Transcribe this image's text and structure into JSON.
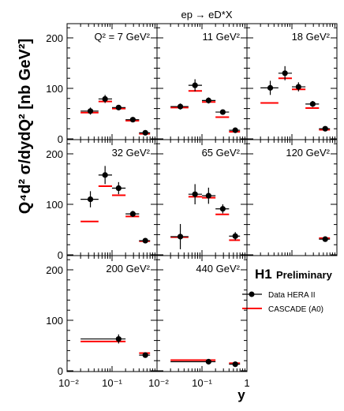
{
  "figure": {
    "process_title": "ep → eD*X",
    "ylabel": "Q⁴d² σ/dydQ² [nb GeV²]",
    "xlabel": "y",
    "experiment": "H1",
    "status": "Preliminary",
    "colors": {
      "data": "#000000",
      "cascade": "#ff0000"
    }
  },
  "legend": {
    "entries": [
      {
        "label": "Data HERA II",
        "style": "marker-errorbar",
        "color": "#000000"
      },
      {
        "label": "CASCADE (A0)",
        "style": "line",
        "color": "#ff0000"
      }
    ]
  },
  "axes_labels": {
    "y_ticks": [
      "0",
      "100",
      "200"
    ],
    "x_ticks": [
      "10⁻²",
      "10⁻¹",
      "1"
    ]
  },
  "chart_data": [
    {
      "type": "scatter",
      "title": "Q² = 7 GeV²",
      "xscale": "log",
      "xlim": [
        0.01,
        1
      ],
      "ylim": [
        0,
        225
      ],
      "series": [
        {
          "name": "Data HERA II",
          "points": [
            {
              "x": 0.033,
              "y": 55,
              "xlo": 0.02,
              "xhi": 0.05,
              "err": 7
            },
            {
              "x": 0.07,
              "y": 79,
              "xlo": 0.05,
              "xhi": 0.1,
              "err": 8
            },
            {
              "x": 0.14,
              "y": 62,
              "xlo": 0.1,
              "xhi": 0.2,
              "err": 5
            },
            {
              "x": 0.29,
              "y": 38,
              "xlo": 0.2,
              "xhi": 0.4,
              "err": 4
            },
            {
              "x": 0.55,
              "y": 12,
              "xlo": 0.4,
              "xhi": 0.7,
              "err": 3
            }
          ]
        },
        {
          "name": "CASCADE (A0)",
          "steps": [
            {
              "xlo": 0.02,
              "xhi": 0.05,
              "y": 52
            },
            {
              "xlo": 0.05,
              "xhi": 0.1,
              "y": 74
            },
            {
              "xlo": 0.1,
              "xhi": 0.2,
              "y": 60
            },
            {
              "xlo": 0.2,
              "xhi": 0.4,
              "y": 36
            },
            {
              "xlo": 0.4,
              "xhi": 0.7,
              "y": 10
            }
          ]
        }
      ]
    },
    {
      "type": "scatter",
      "title": "11 GeV²",
      "xscale": "log",
      "xlim": [
        0.01,
        1
      ],
      "ylim": [
        0,
        225
      ],
      "series": [
        {
          "name": "Data HERA II",
          "points": [
            {
              "x": 0.033,
              "y": 64,
              "xlo": 0.02,
              "xhi": 0.05,
              "err": 6
            },
            {
              "x": 0.07,
              "y": 106,
              "xlo": 0.05,
              "xhi": 0.1,
              "err": 12
            },
            {
              "x": 0.14,
              "y": 76,
              "xlo": 0.1,
              "xhi": 0.2,
              "err": 6
            },
            {
              "x": 0.29,
              "y": 53,
              "xlo": 0.2,
              "xhi": 0.4,
              "err": 4
            },
            {
              "x": 0.55,
              "y": 17,
              "xlo": 0.4,
              "xhi": 0.7,
              "err": 3
            }
          ]
        },
        {
          "name": "CASCADE (A0)",
          "steps": [
            {
              "xlo": 0.02,
              "xhi": 0.05,
              "y": 62
            },
            {
              "xlo": 0.05,
              "xhi": 0.1,
              "y": 95
            },
            {
              "xlo": 0.1,
              "xhi": 0.2,
              "y": 73
            },
            {
              "xlo": 0.2,
              "xhi": 0.4,
              "y": 43
            },
            {
              "xlo": 0.4,
              "xhi": 0.7,
              "y": 14
            }
          ]
        }
      ]
    },
    {
      "type": "scatter",
      "title": "18 GeV²",
      "xscale": "log",
      "xlim": [
        0.01,
        1
      ],
      "ylim": [
        0,
        225
      ],
      "series": [
        {
          "name": "Data HERA II",
          "points": [
            {
              "x": 0.033,
              "y": 101,
              "xlo": 0.02,
              "xhi": 0.05,
              "err": 14
            },
            {
              "x": 0.07,
              "y": 130,
              "xlo": 0.05,
              "xhi": 0.1,
              "err": 14
            },
            {
              "x": 0.14,
              "y": 103,
              "xlo": 0.1,
              "xhi": 0.2,
              "err": 9
            },
            {
              "x": 0.29,
              "y": 69,
              "xlo": 0.2,
              "xhi": 0.4,
              "err": 6
            },
            {
              "x": 0.55,
              "y": 20,
              "xlo": 0.4,
              "xhi": 0.7,
              "err": 3
            }
          ]
        },
        {
          "name": "CASCADE (A0)",
          "steps": [
            {
              "xlo": 0.02,
              "xhi": 0.05,
              "y": 71
            },
            {
              "xlo": 0.05,
              "xhi": 0.1,
              "y": 120
            },
            {
              "xlo": 0.1,
              "xhi": 0.2,
              "y": 98
            },
            {
              "xlo": 0.2,
              "xhi": 0.4,
              "y": 61
            },
            {
              "xlo": 0.4,
              "xhi": 0.7,
              "y": 18
            }
          ]
        }
      ]
    },
    {
      "type": "scatter",
      "title": "32 GeV²",
      "xscale": "log",
      "xlim": [
        0.01,
        1
      ],
      "ylim": [
        0,
        225
      ],
      "series": [
        {
          "name": "Data HERA II",
          "points": [
            {
              "x": 0.033,
              "y": 110,
              "xlo": 0.02,
              "xhi": 0.05,
              "err": 16
            },
            {
              "x": 0.07,
              "y": 158,
              "xlo": 0.05,
              "xhi": 0.1,
              "err": 18
            },
            {
              "x": 0.14,
              "y": 132,
              "xlo": 0.1,
              "xhi": 0.2,
              "err": 12
            },
            {
              "x": 0.29,
              "y": 81,
              "xlo": 0.2,
              "xhi": 0.4,
              "err": 6
            },
            {
              "x": 0.55,
              "y": 28,
              "xlo": 0.4,
              "xhi": 0.7,
              "err": 3
            }
          ]
        },
        {
          "name": "CASCADE (A0)",
          "steps": [
            {
              "xlo": 0.02,
              "xhi": 0.05,
              "y": 66
            },
            {
              "xlo": 0.05,
              "xhi": 0.1,
              "y": 136
            },
            {
              "xlo": 0.1,
              "xhi": 0.2,
              "y": 118
            },
            {
              "xlo": 0.2,
              "xhi": 0.4,
              "y": 76
            },
            {
              "xlo": 0.4,
              "xhi": 0.7,
              "y": 27
            }
          ]
        }
      ]
    },
    {
      "type": "scatter",
      "title": "65 GeV²",
      "xscale": "log",
      "xlim": [
        0.01,
        1
      ],
      "ylim": [
        0,
        225
      ],
      "series": [
        {
          "name": "Data HERA II",
          "points": [
            {
              "x": 0.033,
              "y": 36,
              "xlo": 0.02,
              "xhi": 0.05,
              "err": 25
            },
            {
              "x": 0.07,
              "y": 120,
              "xlo": 0.05,
              "xhi": 0.1,
              "err": 20
            },
            {
              "x": 0.14,
              "y": 117,
              "xlo": 0.1,
              "xhi": 0.2,
              "err": 16
            },
            {
              "x": 0.29,
              "y": 91,
              "xlo": 0.2,
              "xhi": 0.4,
              "err": 9
            },
            {
              "x": 0.55,
              "y": 37,
              "xlo": 0.4,
              "xhi": 0.7,
              "err": 8
            }
          ]
        },
        {
          "name": "CASCADE (A0)",
          "steps": [
            {
              "xlo": 0.02,
              "xhi": 0.05,
              "y": 35
            },
            {
              "xlo": 0.05,
              "xhi": 0.1,
              "y": 115
            },
            {
              "xlo": 0.1,
              "xhi": 0.2,
              "y": 113
            },
            {
              "xlo": 0.2,
              "xhi": 0.4,
              "y": 80
            },
            {
              "xlo": 0.4,
              "xhi": 0.7,
              "y": 29
            }
          ]
        }
      ]
    },
    {
      "type": "scatter",
      "title": "120 GeV²",
      "xscale": "log",
      "xlim": [
        0.01,
        1
      ],
      "ylim": [
        0,
        225
      ],
      "series": [
        {
          "name": "Data HERA II",
          "points": [
            {
              "x": 0.55,
              "y": 31,
              "xlo": 0.4,
              "xhi": 0.7,
              "err": 4
            }
          ]
        },
        {
          "name": "CASCADE (A0)",
          "steps": [
            {
              "xlo": 0.4,
              "xhi": 0.7,
              "y": 33
            }
          ]
        }
      ]
    },
    {
      "type": "scatter",
      "title": "200 GeV²",
      "xscale": "log",
      "xlim": [
        0.01,
        1
      ],
      "ylim": [
        0,
        225
      ],
      "series": [
        {
          "name": "Data HERA II",
          "points": [
            {
              "x": 0.14,
              "y": 63,
              "xlo": 0.02,
              "xhi": 0.2,
              "err": 9
            },
            {
              "x": 0.55,
              "y": 31,
              "xlo": 0.4,
              "xhi": 0.7,
              "err": 4
            }
          ]
        },
        {
          "name": "CASCADE (A0)",
          "steps": [
            {
              "xlo": 0.02,
              "xhi": 0.2,
              "y": 58
            },
            {
              "xlo": 0.4,
              "xhi": 0.7,
              "y": 35
            }
          ]
        }
      ]
    },
    {
      "type": "scatter",
      "title": "440 GeV²",
      "xscale": "log",
      "xlim": [
        0.01,
        1
      ],
      "ylim": [
        0,
        225
      ],
      "series": [
        {
          "name": "Data HERA II",
          "points": [
            {
              "x": 0.14,
              "y": 18,
              "xlo": 0.02,
              "xhi": 0.2,
              "err": 3
            },
            {
              "x": 0.55,
              "y": 13,
              "xlo": 0.4,
              "xhi": 0.7,
              "err": 3
            }
          ]
        },
        {
          "name": "CASCADE (A0)",
          "steps": [
            {
              "xlo": 0.02,
              "xhi": 0.2,
              "y": 21
            },
            {
              "xlo": 0.4,
              "xhi": 0.7,
              "y": 15
            }
          ]
        }
      ]
    }
  ]
}
